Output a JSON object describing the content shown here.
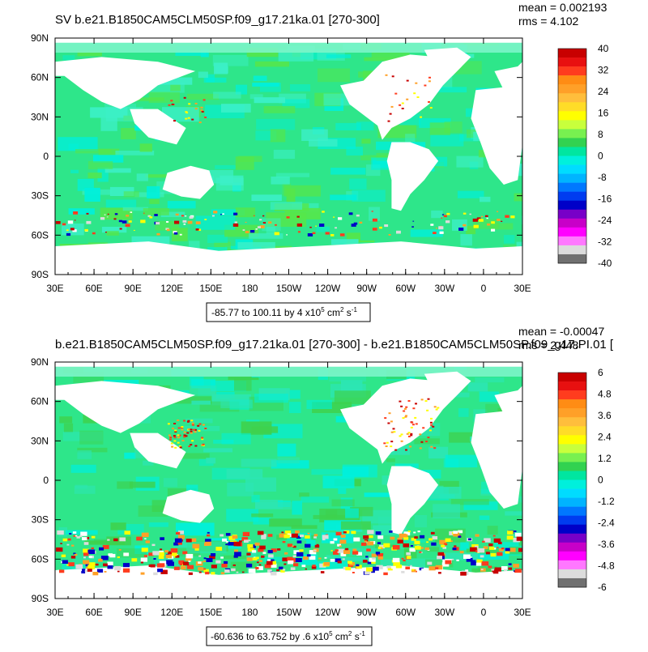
{
  "chart_data": [
    {
      "type": "heatmap",
      "title": "SV b.e21.B1850CAM5CLM50SP.f09_g17.21ka.01 [270-300]",
      "stats": {
        "mean": "mean = 0.002193",
        "rms": "rms = 4.102"
      },
      "x_ticks": [
        "30E",
        "60E",
        "90E",
        "120E",
        "150E",
        "180",
        "150W",
        "120W",
        "90W",
        "60W",
        "30W",
        "0",
        "30E"
      ],
      "y_ticks": [
        "90N",
        "60N",
        "30N",
        "0",
        "30S",
        "60S",
        "90S"
      ],
      "colorbar_labels": [
        "40",
        "32",
        "24",
        "16",
        "8",
        "0",
        "-8",
        "-16",
        "-24",
        "-32",
        "-40"
      ],
      "range_note": {
        "text": "-85.77 to 100.11 by 4 x10",
        "sup": "5",
        "unit": " cm",
        "unit_sup": "2",
        "tail": " s",
        "tail_sup": "-1"
      }
    },
    {
      "type": "heatmap",
      "title": "b.e21.B1850CAM5CLM50SP.f09_g17.21ka.01 [270-300] - b.e21.B1850CAM5CLM50SP.f09_g17.PI.01 [",
      "stats": {
        "mean": "mean = -0.00047",
        "rms": "rms = 2.448"
      },
      "x_ticks": [
        "30E",
        "60E",
        "90E",
        "120E",
        "150E",
        "180",
        "150W",
        "120W",
        "90W",
        "60W",
        "30W",
        "0",
        "30E"
      ],
      "y_ticks": [
        "90N",
        "60N",
        "30N",
        "0",
        "30S",
        "60S",
        "90S"
      ],
      "colorbar_labels": [
        "6",
        "4.8",
        "3.6",
        "2.4",
        "1.2",
        "0",
        "-1.2",
        "-2.4",
        "-3.6",
        "-4.8",
        "-6"
      ],
      "range_note": {
        "text": "-60.636 to 63.752 by .6 x10",
        "sup": "5",
        "unit": " cm",
        "unit_sup": "2",
        "tail": " s",
        "tail_sup": "-1"
      }
    }
  ],
  "colors": {
    "palette": [
      "#c80000",
      "#e81010",
      "#ff3c1e",
      "#ff8c14",
      "#ffa028",
      "#ffbe3c",
      "#ffdc28",
      "#ffff00",
      "#c8ff3c",
      "#78f050",
      "#32d250",
      "#00e6a0",
      "#00f0dc",
      "#00dcff",
      "#00b4ff",
      "#0078ff",
      "#003cf0",
      "#0000c8",
      "#7800c8",
      "#c800c8",
      "#ff00ff",
      "#ff78ff",
      "#dcdcdc",
      "#707070"
    ],
    "land": "#ffffff",
    "ocean_base": "#2ee68a",
    "ocean_alt": "#00f0dc"
  }
}
